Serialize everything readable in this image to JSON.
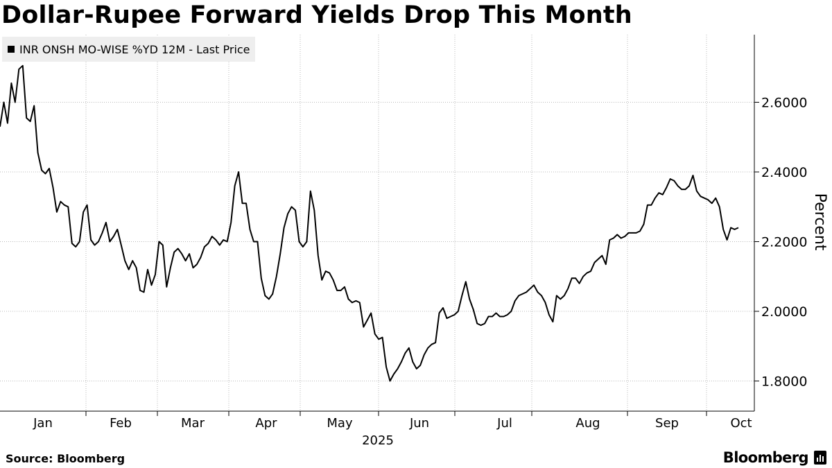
{
  "title": "Dollar-Rupee Forward Yields Drop This Month",
  "source": "Source: Bloomberg",
  "logo_text": "Bloomberg",
  "chart_data": {
    "type": "line",
    "legend": "INR ONSH MO-WISE %YD 12M - Last Price",
    "ylabel": "Percent",
    "xlabel": "2025",
    "ylim": [
      1.72,
      2.8
    ],
    "yticks": [
      1.8,
      2.0,
      2.2,
      2.4,
      2.6
    ],
    "ytick_labels": [
      "1.8000",
      "2.0000",
      "2.2000",
      "2.4000",
      "2.6000"
    ],
    "month_labels": [
      "Jan",
      "Feb",
      "Mar",
      "Apr",
      "May",
      "Jun",
      "Jul",
      "Aug",
      "Sep",
      "Oct"
    ],
    "year_label": "2025",
    "series": [
      {
        "name": "INR ONSH MO-WISE %YD 12M - Last Price",
        "values": [
          2.53,
          2.6,
          2.54,
          2.655,
          2.6,
          2.695,
          2.705,
          2.555,
          2.545,
          2.59,
          2.455,
          2.405,
          2.395,
          2.41,
          2.355,
          2.285,
          2.315,
          2.305,
          2.3,
          2.195,
          2.185,
          2.2,
          2.285,
          2.305,
          2.205,
          2.19,
          2.2,
          2.225,
          2.255,
          2.2,
          2.215,
          2.235,
          2.19,
          2.145,
          2.12,
          2.145,
          2.125,
          2.06,
          2.055,
          2.12,
          2.075,
          2.105,
          2.2,
          2.19,
          2.07,
          2.125,
          2.17,
          2.18,
          2.165,
          2.145,
          2.165,
          2.125,
          2.135,
          2.155,
          2.185,
          2.195,
          2.215,
          2.205,
          2.19,
          2.205,
          2.2,
          2.255,
          2.36,
          2.4,
          2.31,
          2.31,
          2.235,
          2.2,
          2.2,
          2.095,
          2.045,
          2.035,
          2.05,
          2.1,
          2.165,
          2.24,
          2.28,
          2.3,
          2.29,
          2.2,
          2.185,
          2.2,
          2.345,
          2.29,
          2.16,
          2.09,
          2.115,
          2.11,
          2.09,
          2.06,
          2.06,
          2.07,
          2.035,
          2.025,
          2.03,
          2.025,
          1.955,
          1.975,
          1.995,
          1.935,
          1.92,
          1.925,
          1.84,
          1.8,
          1.82,
          1.835,
          1.855,
          1.88,
          1.895,
          1.855,
          1.835,
          1.845,
          1.875,
          1.895,
          1.905,
          1.91,
          1.995,
          2.01,
          1.98,
          1.985,
          1.99,
          2.0,
          2.045,
          2.085,
          2.035,
          2.005,
          1.965,
          1.96,
          1.965,
          1.985,
          1.985,
          1.995,
          1.985,
          1.985,
          1.99,
          2.0,
          2.03,
          2.045,
          2.05,
          2.055,
          2.065,
          2.075,
          2.055,
          2.045,
          2.025,
          1.99,
          1.97,
          2.045,
          2.035,
          2.045,
          2.065,
          2.095,
          2.095,
          2.08,
          2.1,
          2.11,
          2.115,
          2.14,
          2.15,
          2.16,
          2.135,
          2.205,
          2.21,
          2.22,
          2.21,
          2.215,
          2.225,
          2.225,
          2.225,
          2.23,
          2.25,
          2.305,
          2.305,
          2.325,
          2.34,
          2.335,
          2.355,
          2.38,
          2.375,
          2.36,
          2.35,
          2.35,
          2.36,
          2.39,
          2.345,
          2.33,
          2.325,
          2.32,
          2.31,
          2.325,
          2.3,
          2.235,
          2.205,
          2.24,
          2.235,
          2.24
        ]
      }
    ]
  }
}
